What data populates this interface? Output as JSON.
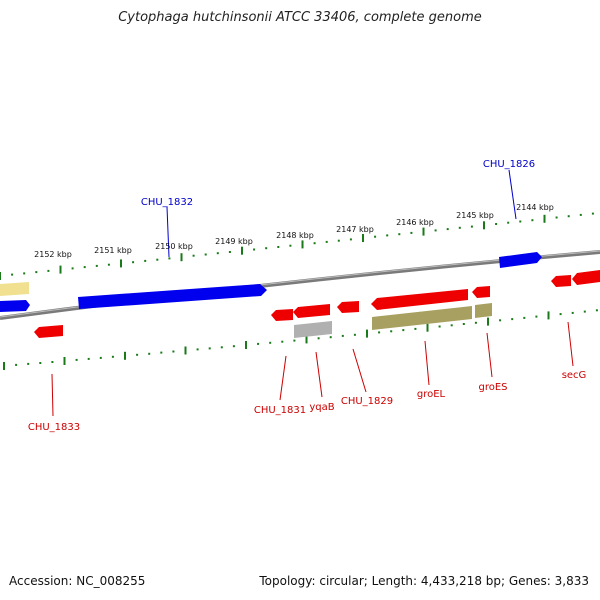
{
  "title": "Cytophaga hutchinsonii ATCC 33406, complete genome",
  "footer": {
    "accession": "Accession: NC_008255",
    "summary": "Topology: circular; Length: 4,433,218 bp; Genes: 3,833"
  },
  "colors": {
    "forward_gene": "#0000ee",
    "reverse_gene": "#ee0000",
    "rna_or_feature_olive": "#a8a060",
    "feature_gray": "#b0b0b0",
    "feature_yellow": "#f0e090",
    "tick": "#1a7a1a",
    "backbone": "#7a7a7a"
  },
  "ruler_top": [
    {
      "label": "2152 kbp"
    },
    {
      "label": "2151 kbp"
    },
    {
      "label": "2150 kbp"
    },
    {
      "label": "2149 kbp"
    },
    {
      "label": "2148 kbp"
    },
    {
      "label": "2147 kbp"
    },
    {
      "label": "2146 kbp"
    },
    {
      "label": "2145 kbp"
    },
    {
      "label": "2144 kbp"
    }
  ],
  "genes_labeled": [
    {
      "name": "CHU_1826",
      "strand": "forward"
    },
    {
      "name": "CHU_1832",
      "strand": "forward"
    },
    {
      "name": "CHU_1833",
      "strand": "reverse"
    },
    {
      "name": "CHU_1831",
      "strand": "reverse"
    },
    {
      "name": "yqaB",
      "strand": "reverse"
    },
    {
      "name": "CHU_1829",
      "strand": "reverse"
    },
    {
      "name": "groEL",
      "strand": "reverse"
    },
    {
      "name": "groES",
      "strand": "reverse"
    },
    {
      "name": "secG",
      "strand": "reverse"
    }
  ]
}
